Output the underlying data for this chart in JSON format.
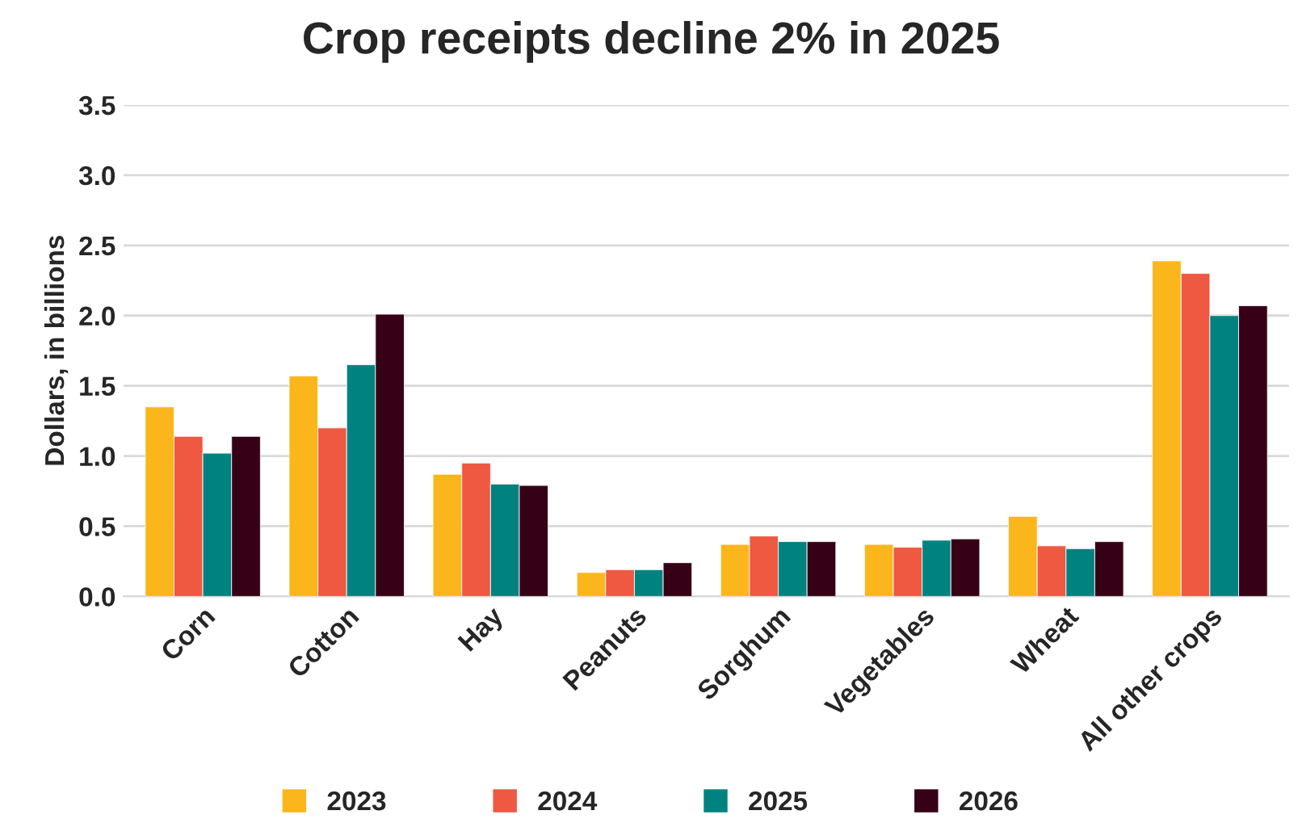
{
  "chart_data": {
    "type": "bar",
    "title": "Crop receipts decline 2% in 2025",
    "ylabel": "Dollars, in billions",
    "categories": [
      "Corn",
      "Cotton",
      "Hay",
      "Peanuts",
      "Sorghum",
      "Vegetables",
      "Wheat",
      "All other crops"
    ],
    "series": [
      {
        "name": "2023",
        "color": "#fbb61b",
        "values": [
          1.35,
          1.57,
          0.87,
          0.17,
          0.37,
          0.37,
          0.57,
          2.39
        ]
      },
      {
        "name": "2024",
        "color": "#ef5841",
        "values": [
          1.14,
          1.2,
          0.95,
          0.19,
          0.43,
          0.35,
          0.36,
          2.3
        ]
      },
      {
        "name": "2025",
        "color": "#008281",
        "values": [
          1.02,
          1.65,
          0.8,
          0.19,
          0.39,
          0.4,
          0.34,
          2.0
        ]
      },
      {
        "name": "2026",
        "color": "#360017",
        "values": [
          1.14,
          2.01,
          0.79,
          0.24,
          0.39,
          0.41,
          0.39,
          2.07
        ]
      }
    ],
    "ylim": [
      0,
      3.5
    ],
    "yticks": [
      {
        "value": 0,
        "label": "0.0"
      },
      {
        "value": 0.5,
        "label": "0.5"
      },
      {
        "value": 1,
        "label": "1.0"
      },
      {
        "value": 1.5,
        "label": "1.5"
      },
      {
        "value": 2,
        "label": "2.0"
      },
      {
        "value": 2.5,
        "label": "2.5"
      },
      {
        "value": 3,
        "label": "3.0"
      },
      {
        "value": 3.5,
        "label": "3.5"
      }
    ],
    "grid": "y",
    "legend": "bottom"
  }
}
